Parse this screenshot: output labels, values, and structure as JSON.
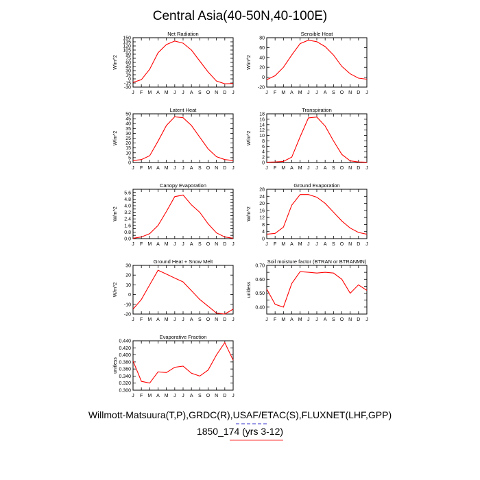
{
  "title": "Central Asia(40-50N,40-100E)",
  "footer": {
    "line1": "Willmott-Matsuura(T,P),GRDC(R),USAF/ETAC(S),FLUXNET(LHF,GPP)",
    "line2": "1850_174 (yrs 3-12)"
  },
  "colors": {
    "series": "#ff0000",
    "axis": "#000000",
    "underline_blue": "#3333cc",
    "underline_red": "#ff3333"
  },
  "chart_data": [
    {
      "type": "line",
      "title": "Net Radiation",
      "ylabel": "W/m^2",
      "x": [
        "J",
        "F",
        "M",
        "A",
        "M",
        "J",
        "J",
        "A",
        "S",
        "O",
        "N",
        "D",
        "J"
      ],
      "ylim": [
        -30,
        150
      ],
      "yticks": [
        -30,
        -15,
        0,
        15,
        30,
        45,
        60,
        75,
        90,
        105,
        120,
        135,
        150
      ],
      "series": [
        {
          "name": "1850_174",
          "values": [
            -13,
            -3,
            35,
            95,
            125,
            138,
            130,
            105,
            65,
            25,
            -8,
            -18,
            -17
          ]
        }
      ]
    },
    {
      "type": "line",
      "title": "Sensible Heat",
      "ylabel": "W/m^2",
      "x": [
        "J",
        "F",
        "M",
        "A",
        "M",
        "J",
        "J",
        "A",
        "S",
        "O",
        "N",
        "D",
        "J"
      ],
      "ylim": [
        -20,
        80
      ],
      "yticks": [
        -20,
        0,
        20,
        40,
        60,
        80
      ],
      "series": [
        {
          "name": "1850_174",
          "values": [
            -5,
            3,
            20,
            45,
            68,
            75,
            72,
            62,
            45,
            22,
            7,
            -2,
            -4
          ]
        }
      ]
    },
    {
      "type": "line",
      "title": "Latent Heat",
      "ylabel": "W/m^2",
      "x": [
        "J",
        "F",
        "M",
        "A",
        "M",
        "J",
        "J",
        "A",
        "S",
        "O",
        "N",
        "D",
        "J"
      ],
      "ylim": [
        0,
        50
      ],
      "yticks": [
        0,
        5,
        10,
        15,
        20,
        25,
        30,
        35,
        40,
        45,
        50
      ],
      "series": [
        {
          "name": "1850_174",
          "values": [
            2,
            3,
            7,
            22,
            38,
            47,
            46,
            38,
            26,
            14,
            6,
            3,
            2
          ]
        }
      ]
    },
    {
      "type": "line",
      "title": "Transpiration",
      "ylabel": "W/m^2",
      "x": [
        "J",
        "F",
        "M",
        "A",
        "M",
        "J",
        "J",
        "A",
        "S",
        "O",
        "N",
        "D",
        "J"
      ],
      "ylim": [
        0,
        18
      ],
      "yticks": [
        0,
        2,
        4,
        6,
        8,
        10,
        12,
        14,
        16,
        18
      ],
      "series": [
        {
          "name": "1850_174",
          "values": [
            0.1,
            0.2,
            0.4,
            2.0,
            9.5,
            16.5,
            16.8,
            13.5,
            8.0,
            3.0,
            0.6,
            0.2,
            0.1
          ]
        }
      ]
    },
    {
      "type": "line",
      "title": "Canopy Evaporation",
      "ylabel": "W/m^2",
      "x": [
        "J",
        "F",
        "M",
        "A",
        "M",
        "J",
        "J",
        "A",
        "S",
        "O",
        "N",
        "D",
        "J"
      ],
      "ylim": [
        0.0,
        6.0
      ],
      "yticks": [
        0.0,
        0.4,
        0.8,
        1.2,
        1.6,
        2.0,
        2.4,
        2.8,
        3.2,
        3.6,
        4.0,
        4.4,
        4.8,
        5.2,
        5.6,
        6.0
      ],
      "ytick_labels": [
        "0.0",
        "",
        "0.8",
        "",
        "1.6",
        "",
        "2.4",
        "",
        "3.2",
        "",
        "4.0",
        "",
        "4.8",
        "",
        "5.6",
        ""
      ],
      "series": [
        {
          "name": "1850_174",
          "values": [
            0.05,
            0.2,
            0.6,
            1.6,
            3.3,
            5.1,
            5.3,
            4.1,
            3.2,
            1.8,
            0.7,
            0.2,
            0.05
          ]
        }
      ]
    },
    {
      "type": "line",
      "title": "Ground Evaporation",
      "ylabel": "W/m^2",
      "x": [
        "J",
        "F",
        "M",
        "A",
        "M",
        "J",
        "J",
        "A",
        "S",
        "O",
        "N",
        "D",
        "J"
      ],
      "ylim": [
        0,
        28
      ],
      "yticks": [
        0,
        4,
        8,
        12,
        16,
        20,
        24,
        28
      ],
      "series": [
        {
          "name": "1850_174",
          "values": [
            2.5,
            3.0,
            6.5,
            19.0,
            25.0,
            25.0,
            23.5,
            20.0,
            15.0,
            10.0,
            6.0,
            3.5,
            2.5
          ]
        }
      ]
    },
    {
      "type": "line",
      "title": "Ground Heat + Snow Melt",
      "ylabel": "W/m^2",
      "x": [
        "J",
        "F",
        "M",
        "A",
        "M",
        "J",
        "J",
        "A",
        "S",
        "O",
        "N",
        "D",
        "J"
      ],
      "ylim": [
        -20,
        30
      ],
      "yticks": [
        -20,
        -10,
        0,
        10,
        20,
        30
      ],
      "series": [
        {
          "name": "1850_174",
          "values": [
            -15,
            -5,
            10,
            25,
            21,
            17,
            13,
            4,
            -5,
            -12,
            -19,
            -20,
            -15
          ]
        }
      ]
    },
    {
      "type": "line",
      "title": "Soil moisture factor (BTRAN or BTRANMN)",
      "ylabel": "unitless",
      "x": [
        "J",
        "F",
        "M",
        "A",
        "M",
        "J",
        "J",
        "A",
        "S",
        "O",
        "N",
        "D",
        "J"
      ],
      "ylim": [
        0.35,
        0.7
      ],
      "yticks": [
        0.35,
        0.4,
        0.45,
        0.5,
        0.55,
        0.6,
        0.65,
        0.7
      ],
      "ytick_labels": [
        "",
        "0.40",
        "",
        "0.50",
        "",
        "0.60",
        "",
        "0.70"
      ],
      "series": [
        {
          "name": "1850_174",
          "values": [
            0.53,
            0.42,
            0.4,
            0.57,
            0.655,
            0.65,
            0.645,
            0.65,
            0.645,
            0.6,
            0.5,
            0.56,
            0.52
          ]
        }
      ]
    },
    {
      "type": "line",
      "title": "Evaporative Fraction",
      "ylabel": "unitless",
      "x": [
        "J",
        "F",
        "M",
        "A",
        "M",
        "J",
        "J",
        "A",
        "S",
        "O",
        "N",
        "D",
        "J"
      ],
      "ylim": [
        0.3,
        0.44
      ],
      "yticks": [
        0.3,
        0.32,
        0.34,
        0.36,
        0.38,
        0.4,
        0.42,
        0.44
      ],
      "series": [
        {
          "name": "1850_174",
          "values": [
            0.383,
            0.325,
            0.32,
            0.352,
            0.35,
            0.365,
            0.368,
            0.348,
            0.34,
            0.357,
            0.4,
            0.435,
            0.385
          ]
        }
      ]
    }
  ]
}
